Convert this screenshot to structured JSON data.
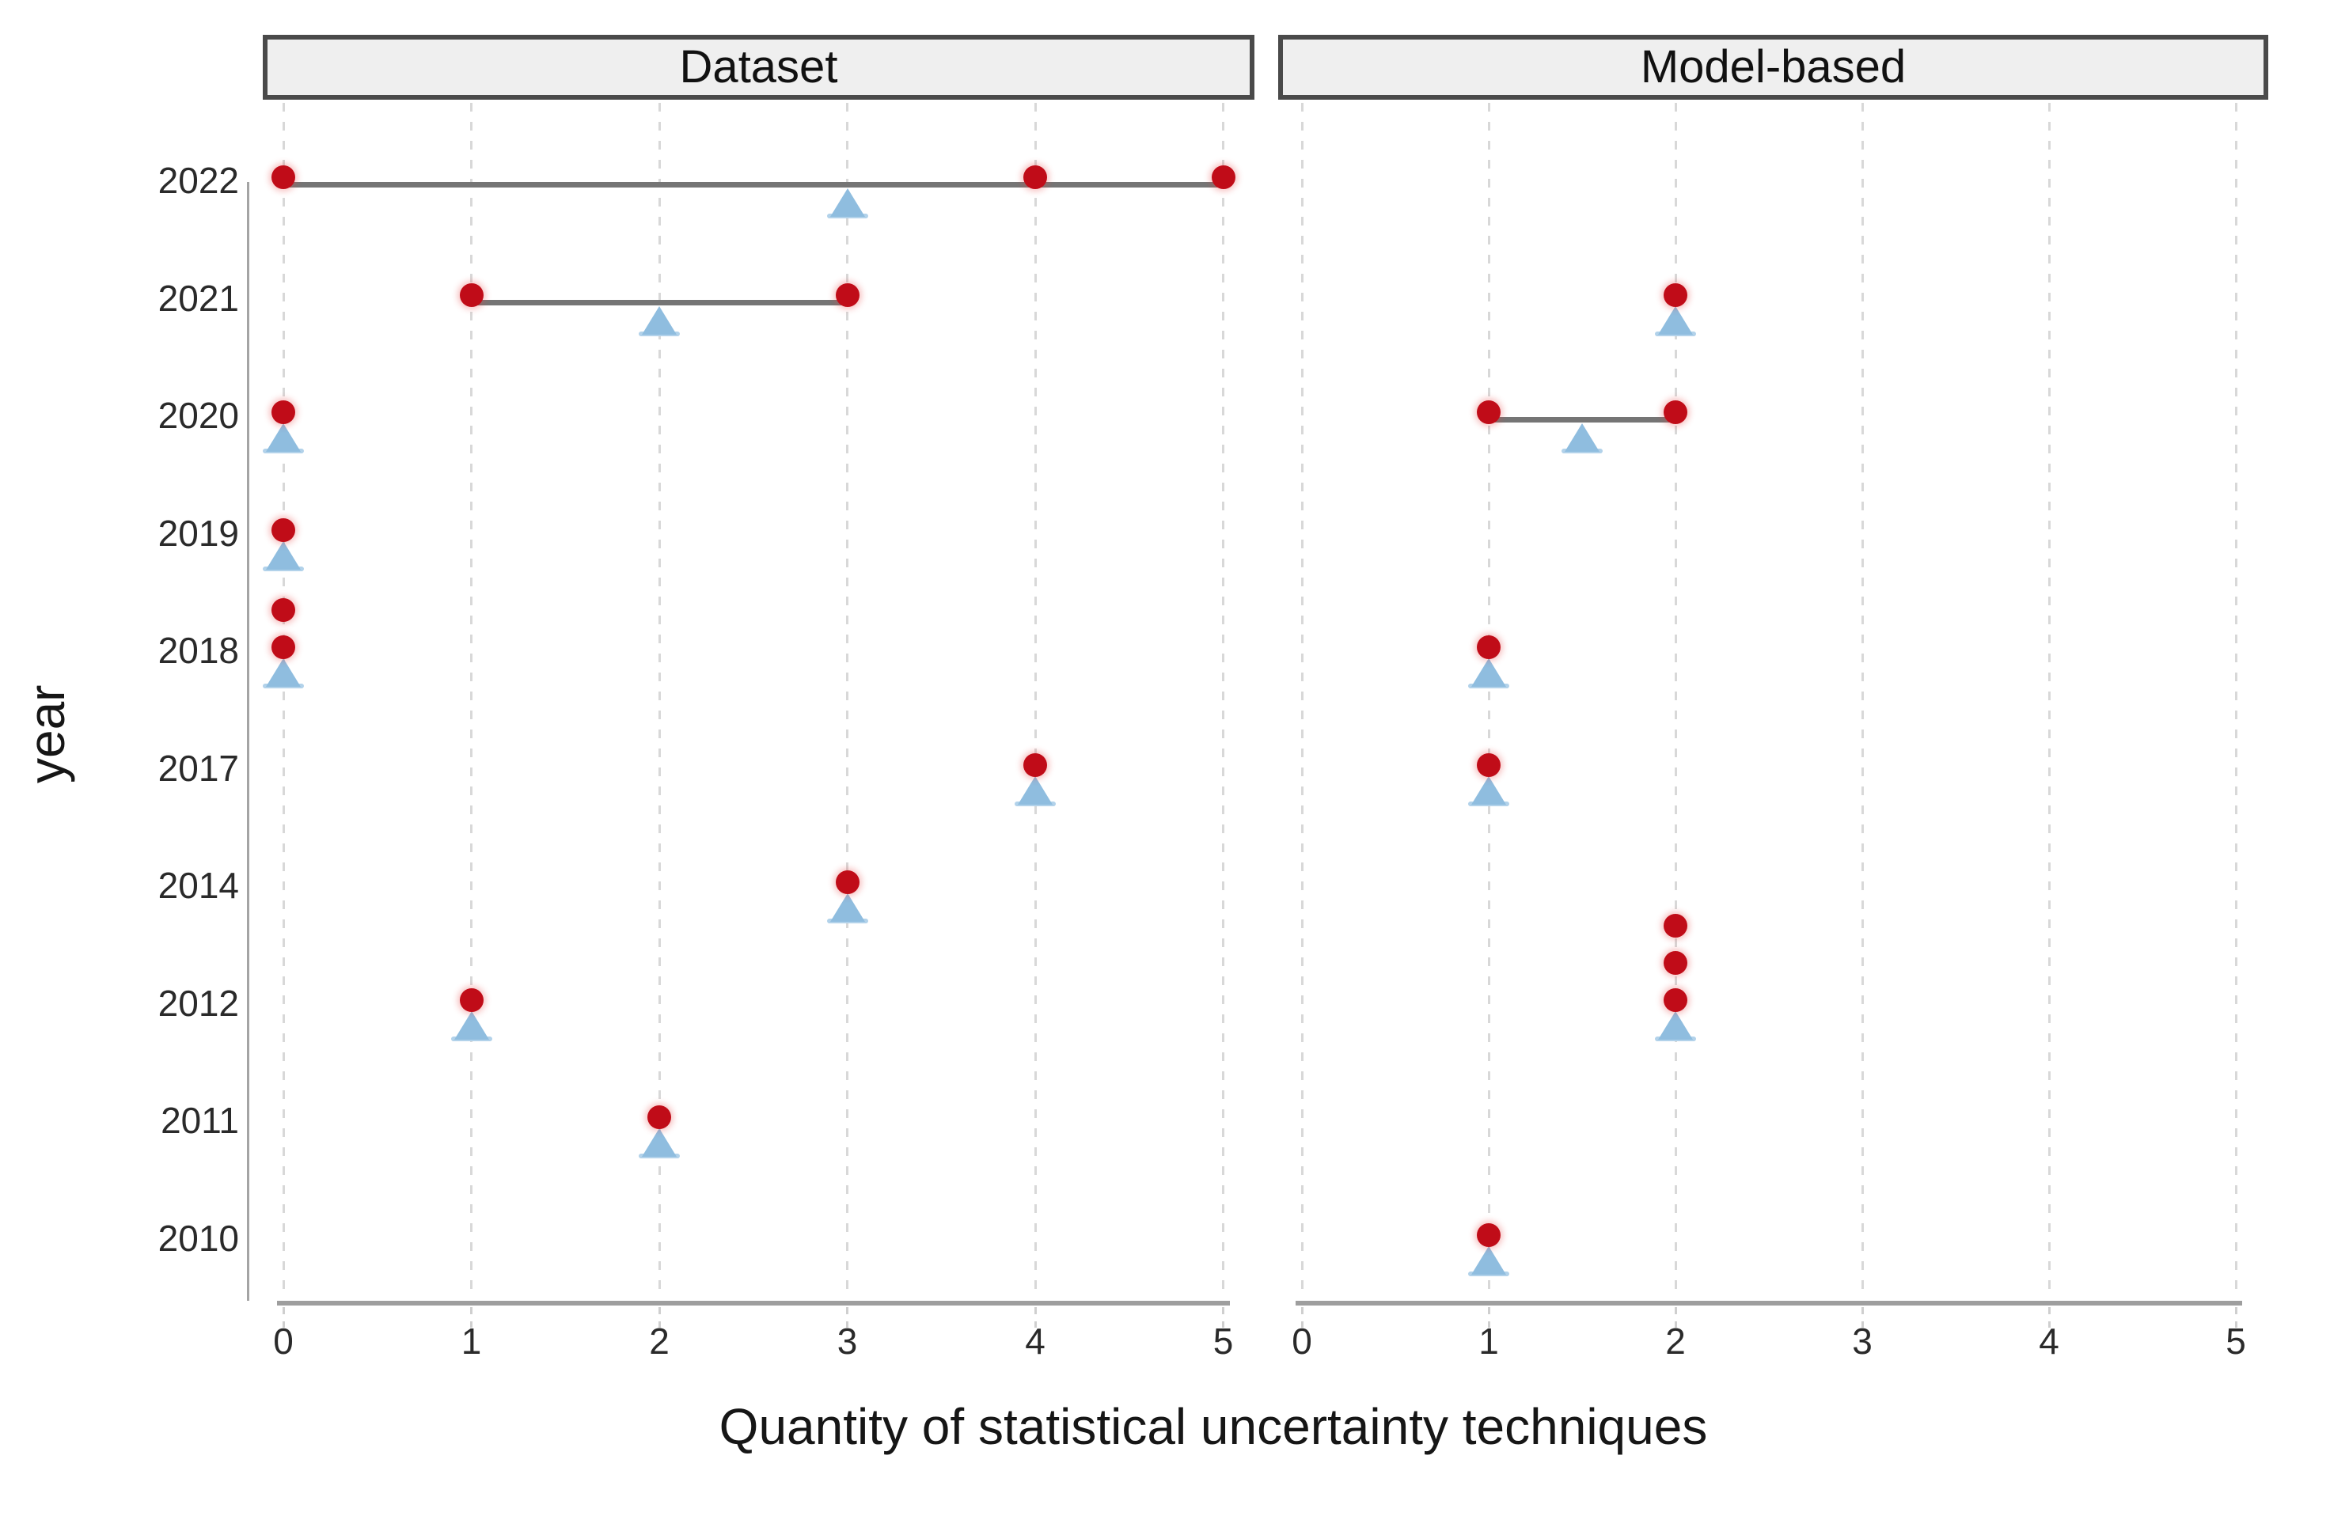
{
  "chart_data": {
    "type": "scatter",
    "title": "",
    "xlabel": "Quantity of statistical uncertainty techniques",
    "ylabel": "year",
    "x_ticks": [
      "0",
      "1",
      "2",
      "3",
      "4",
      "5"
    ],
    "xlim": [
      0,
      5
    ],
    "y_categories": [
      "2022",
      "2021",
      "2020",
      "2019",
      "2018",
      "2017",
      "2014",
      "2012",
      "2011",
      "2010"
    ],
    "grid": "vertical dashed gridlines at each integer x, no horizontal gridlines",
    "legend_position": "none",
    "marks": {
      "observation": "dark-red filled circle (one per paper; equal values stack vertically above the year row)",
      "mean": "light-blue upward triangle placed just below the year row at the mean value",
      "range": "gray horizontal segment connecting minimum and maximum observation of the year"
    },
    "colors": {
      "observation": "#c00c18",
      "mean": "#8fbddf",
      "mean_foot": "#b2d2ea",
      "range": "#757575",
      "axis": "#9e9e9e",
      "grid": "#d8d8d8",
      "strip_fill": "#efefef",
      "strip_border": "#4a4a4a",
      "text": "#2a2a2a"
    },
    "facets": [
      {
        "label": "Dataset",
        "rows": [
          {
            "year": "2022",
            "obs": [
              0,
              4,
              5
            ],
            "mean": 3
          },
          {
            "year": "2021",
            "obs": [
              1,
              3
            ],
            "mean": 2
          },
          {
            "year": "2020",
            "obs": [
              0
            ],
            "mean": 0
          },
          {
            "year": "2019",
            "obs": [
              0
            ],
            "mean": 0
          },
          {
            "year": "2018",
            "obs": [
              0,
              0
            ],
            "mean": 0
          },
          {
            "year": "2017",
            "obs": [
              4
            ],
            "mean": 4
          },
          {
            "year": "2014",
            "obs": [
              3
            ],
            "mean": 3
          },
          {
            "year": "2012",
            "obs": [
              1
            ],
            "mean": 1
          },
          {
            "year": "2011",
            "obs": [
              2
            ],
            "mean": 2
          },
          {
            "year": "2010",
            "obs": [],
            "mean": null
          }
        ]
      },
      {
        "label": "Model-based",
        "rows": [
          {
            "year": "2022",
            "obs": [],
            "mean": null
          },
          {
            "year": "2021",
            "obs": [
              2
            ],
            "mean": 2
          },
          {
            "year": "2020",
            "obs": [
              1,
              2
            ],
            "mean": 1.5
          },
          {
            "year": "2019",
            "obs": [],
            "mean": null
          },
          {
            "year": "2018",
            "obs": [
              1
            ],
            "mean": 1
          },
          {
            "year": "2017",
            "obs": [
              1
            ],
            "mean": 1
          },
          {
            "year": "2014",
            "obs": [],
            "mean": null
          },
          {
            "year": "2012",
            "obs": [
              2,
              2,
              2
            ],
            "mean": 2
          },
          {
            "year": "2011",
            "obs": [],
            "mean": null
          },
          {
            "year": "2010",
            "obs": [
              1
            ],
            "mean": 1
          }
        ]
      }
    ]
  }
}
